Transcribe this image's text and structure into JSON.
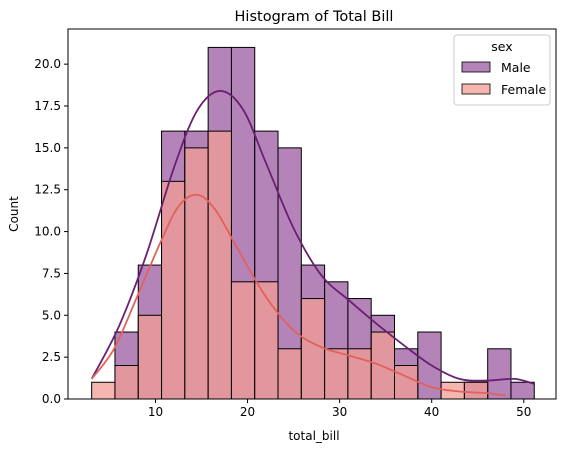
{
  "chart_data": {
    "type": "histogram",
    "title": "Histogram of Total Bill",
    "xlabel": "total_bill",
    "ylabel": "Count",
    "xlim": [
      0.5,
      53.5
    ],
    "ylim": [
      0,
      22.1
    ],
    "xticks": [
      10,
      20,
      30,
      40,
      50
    ],
    "yticks": [
      0.0,
      2.5,
      5.0,
      7.5,
      10.0,
      12.5,
      15.0,
      17.5,
      20.0
    ],
    "ytick_labels": [
      "0.0",
      "2.5",
      "5.0",
      "7.5",
      "10.0",
      "12.5",
      "15.0",
      "17.5",
      "20.0"
    ],
    "grid": false,
    "legend": {
      "title": "sex",
      "placement": "top-right"
    },
    "bin_edges": [
      3.07,
      5.6,
      8.13,
      10.66,
      13.19,
      15.72,
      18.25,
      20.78,
      23.31,
      25.84,
      28.37,
      30.9,
      33.43,
      35.96,
      38.49,
      41.02,
      43.55,
      46.08,
      48.61,
      51.14
    ],
    "series": [
      {
        "name": "Male",
        "color": "#9b59a0",
        "kde_color": "#6b1f73",
        "counts": [
          0,
          4,
          8,
          16,
          16,
          21,
          21,
          16,
          15,
          8,
          7,
          6,
          5,
          3,
          4,
          0,
          1,
          3,
          1
        ],
        "kde": [
          [
            3.07,
            1.2
          ],
          [
            6,
            4.3
          ],
          [
            9,
            8.6
          ],
          [
            12,
            13.8
          ],
          [
            14.5,
            17.2
          ],
          [
            17,
            18.4
          ],
          [
            19.5,
            17.3
          ],
          [
            22,
            14.1
          ],
          [
            25,
            10.2
          ],
          [
            28,
            7.4
          ],
          [
            31,
            5.9
          ],
          [
            34,
            4.5
          ],
          [
            37,
            3.2
          ],
          [
            40,
            2.0
          ],
          [
            43,
            1.2
          ],
          [
            46,
            1.1
          ],
          [
            49,
            1.2
          ],
          [
            51.14,
            0.9
          ]
        ]
      },
      {
        "name": "Female",
        "color": "#f29e96",
        "kde_color": "#e2625a",
        "counts": [
          1,
          2,
          5,
          13,
          15,
          16,
          7,
          7,
          3,
          6,
          3,
          3,
          4,
          2,
          0,
          1,
          1,
          0,
          0
        ],
        "kde": [
          [
            3.07,
            1.2
          ],
          [
            5.5,
            3.0
          ],
          [
            8,
            6.1
          ],
          [
            10.5,
            9.3
          ],
          [
            12.5,
            11.5
          ],
          [
            14.5,
            12.2
          ],
          [
            16.5,
            11.3
          ],
          [
            19,
            8.9
          ],
          [
            22,
            6.1
          ],
          [
            25,
            4.1
          ],
          [
            28,
            3.1
          ],
          [
            31,
            2.6
          ],
          [
            34,
            2.1
          ],
          [
            37,
            1.4
          ],
          [
            40,
            0.7
          ],
          [
            43,
            0.45
          ],
          [
            46,
            0.35
          ],
          [
            48,
            0.2
          ]
        ]
      }
    ]
  }
}
